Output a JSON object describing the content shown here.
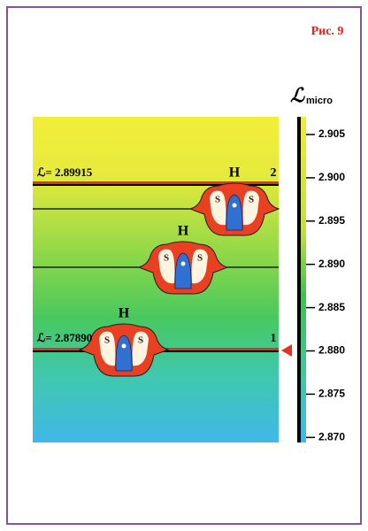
{
  "figure_label": "Рис. 9",
  "axis": {
    "symbol": "ℒ",
    "label": "micro",
    "ticks": [
      "2.905",
      "2.900",
      "2.895",
      "2.890",
      "2.885",
      "2.880",
      "2.875",
      "2.870"
    ]
  },
  "levels": [
    {
      "label": "ℒ= 2.89915",
      "number": "2"
    },
    {
      "label": "ℒ= 2.87890",
      "number": "1"
    }
  ],
  "molecules": [
    {
      "label": "H",
      "atoms": [
        "S",
        "S"
      ]
    },
    {
      "label": "H",
      "atoms": [
        "S",
        "S"
      ]
    },
    {
      "label": "H",
      "atoms": [
        "S",
        "S"
      ]
    }
  ]
}
